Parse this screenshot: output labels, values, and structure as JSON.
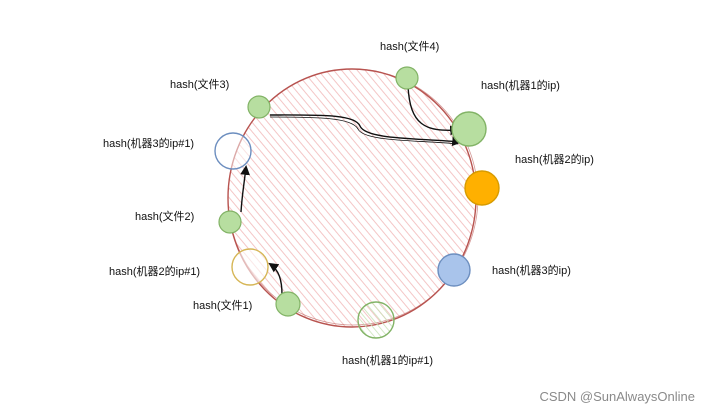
{
  "diagram": {
    "labels": {
      "file4": "hash(文件4)",
      "file3": "hash(文件3)",
      "machine1_ip": "hash(机器1的ip)",
      "machine3_ip1": "hash(机器3的ip#1)",
      "machine2_ip": "hash(机器2的ip)",
      "file2": "hash(文件2)",
      "machine2_ip1": "hash(机器2的ip#1)",
      "machine3_ip": "hash(机器3的ip)",
      "file1": "hash(文件1)",
      "machine1_ip1": "hash(机器1的ip#1)"
    },
    "colors": {
      "ring_stroke": "#b85450",
      "ring_hatch": "#f4c6c6",
      "green_fill": "#b7dea0",
      "green_stroke": "#82b366",
      "orange_fill": "#ffb000",
      "orange_stroke": "#d79b00",
      "blue_fill": "#a9c4eb",
      "blue_stroke": "#6c8ebf",
      "virtual_blue_stroke": "#6c8ebf",
      "virtual_yellow_stroke": "#d6b656",
      "virtual_green_stroke": "#82b366"
    }
  },
  "watermark": "CSDN @SunAlwaysOnline"
}
